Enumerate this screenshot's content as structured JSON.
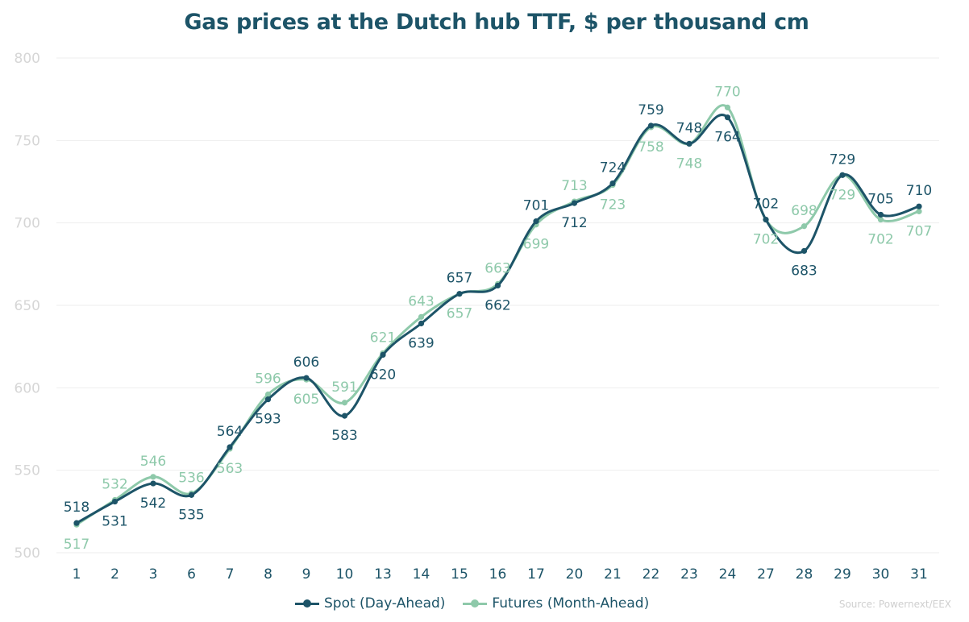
{
  "chart_data": {
    "type": "line",
    "title": "Gas prices at the Dutch hub TTF, $ per thousand cm",
    "categories": [
      "1",
      "2",
      "3",
      "6",
      "7",
      "8",
      "9",
      "10",
      "13",
      "14",
      "15",
      "16",
      "17",
      "20",
      "21",
      "22",
      "23",
      "24",
      "27",
      "28",
      "29",
      "30",
      "31"
    ],
    "series": [
      {
        "name": "Spot (Day-Ahead)",
        "color": "#1d5468",
        "values": [
          518,
          531,
          542,
          535,
          564,
          593,
          606,
          583,
          620,
          639,
          657,
          662,
          701,
          712,
          724,
          759,
          748,
          764,
          702,
          683,
          729,
          705,
          710
        ]
      },
      {
        "name": "Futures (Month-Ahead)",
        "color": "#8ec9aa",
        "values": [
          517,
          532,
          546,
          536,
          563,
          596,
          605,
          591,
          621,
          643,
          657,
          663,
          699,
          713,
          723,
          758,
          748,
          770,
          702,
          698,
          729,
          702,
          707
        ]
      }
    ],
    "ylim": [
      500,
      800
    ],
    "yticks": [
      500,
      550,
      600,
      650,
      700,
      750,
      800
    ],
    "grid": true,
    "legend": "bottom-center",
    "source": "Source: Powernext/EEX"
  }
}
